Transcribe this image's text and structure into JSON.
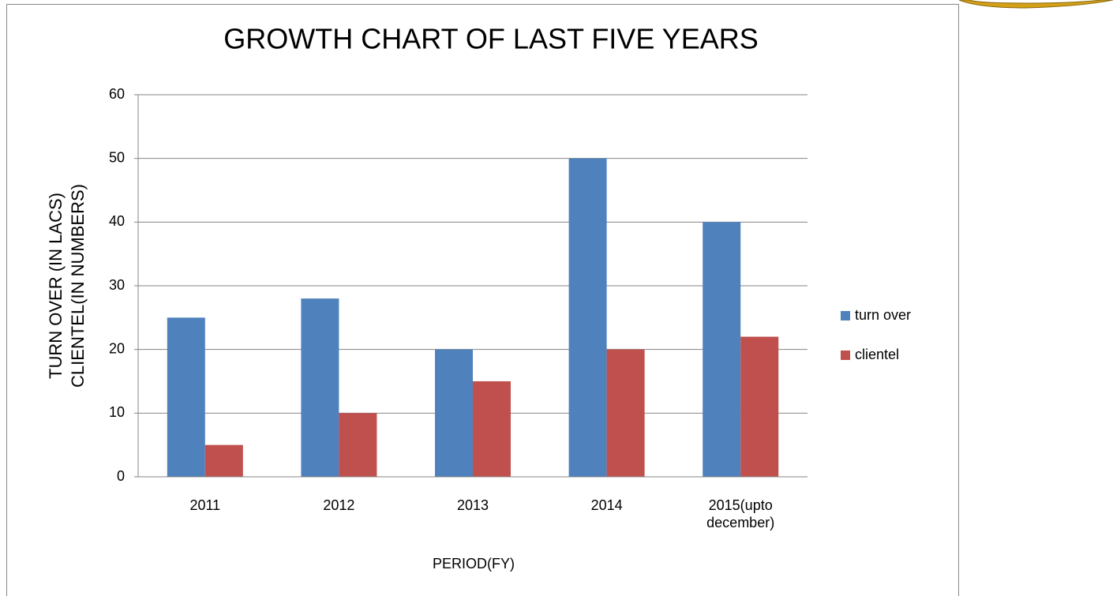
{
  "chart_data": {
    "type": "bar",
    "title": "GROWTH CHART OF LAST FIVE YEARS",
    "xlabel": "PERIOD(FY)",
    "ylabel": [
      "TURN OVER (IN LACS)",
      "CLIENTEL(IN NUMBERS)"
    ],
    "categories": [
      "2011",
      "2012",
      "2013",
      "2014",
      "2015(upto december)"
    ],
    "series": [
      {
        "name": "turn over",
        "color": "#4f81bd",
        "values": [
          25,
          28,
          20,
          50,
          40
        ]
      },
      {
        "name": "clientel",
        "color": "#c0504d",
        "values": [
          5,
          10,
          15,
          20,
          22
        ]
      }
    ],
    "ylim": [
      0,
      60
    ],
    "yticks": [
      0,
      10,
      20,
      30,
      40,
      50,
      60
    ],
    "grid": true,
    "legend": "right"
  }
}
